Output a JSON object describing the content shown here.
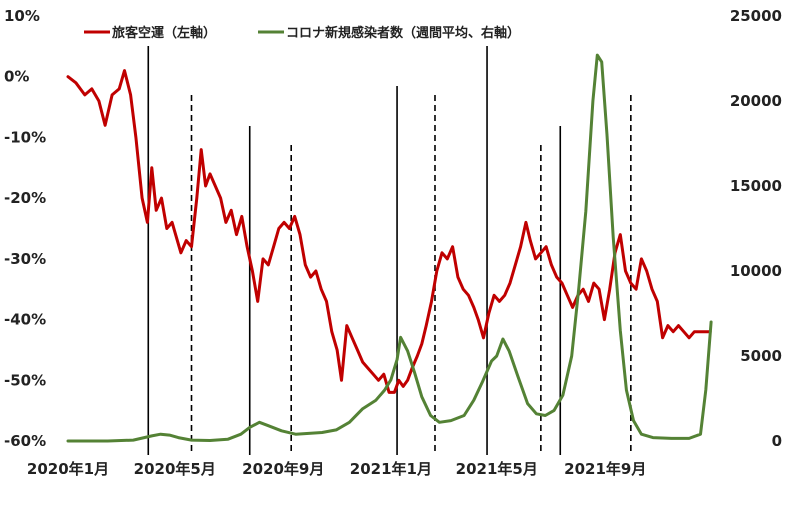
{
  "chart_data": {
    "type": "line",
    "legend": {
      "placement": "top-left"
    },
    "grid": false,
    "x_axis": {
      "range": [
        "2020-01-01",
        "2021-12-31"
      ],
      "ticks": [
        {
          "date": "2020-01-01",
          "label": "2020年1月"
        },
        {
          "date": "2020-05-01",
          "label": "2020年5月"
        },
        {
          "date": "2020-09-01",
          "label": "2020年9月"
        },
        {
          "date": "2021-01-01",
          "label": "2021年1月"
        },
        {
          "date": "2021-05-01",
          "label": "2021年5月"
        },
        {
          "date": "2021-09-01",
          "label": "2021年9月"
        }
      ]
    },
    "y_left": {
      "range": [
        -60,
        10
      ],
      "ticks": [
        {
          "value": 10,
          "label": "10%"
        },
        {
          "value": 0,
          "label": "0%"
        },
        {
          "value": -10,
          "label": "-10%"
        },
        {
          "value": -20,
          "label": "-20%"
        },
        {
          "value": -30,
          "label": "-30%"
        },
        {
          "value": -40,
          "label": "-40%"
        },
        {
          "value": -50,
          "label": "-50%"
        },
        {
          "value": -60,
          "label": "-60%"
        }
      ]
    },
    "y_right": {
      "range": [
        0,
        25000
      ],
      "ticks": [
        {
          "value": 0,
          "label": "0"
        },
        {
          "value": 5000,
          "label": "5000"
        },
        {
          "value": 10000,
          "label": "10000"
        },
        {
          "value": 15000,
          "label": "15000"
        },
        {
          "value": 20000,
          "label": "20000"
        },
        {
          "value": 25000,
          "label": "25000"
        }
      ]
    },
    "series": [
      {
        "name": "旅客空運（左軸）",
        "axis": "left",
        "color": "#C00000",
        "points": [
          [
            "2020-01-01",
            0
          ],
          [
            "2020-01-10",
            -1
          ],
          [
            "2020-01-20",
            -3
          ],
          [
            "2020-01-28",
            -2
          ],
          [
            "2020-02-05",
            -4
          ],
          [
            "2020-02-12",
            -8
          ],
          [
            "2020-02-20",
            -3
          ],
          [
            "2020-02-28",
            -2
          ],
          [
            "2020-03-05",
            1
          ],
          [
            "2020-03-12",
            -3
          ],
          [
            "2020-03-18",
            -10
          ],
          [
            "2020-03-25",
            -20
          ],
          [
            "2020-03-31",
            -24
          ],
          [
            "2020-04-05",
            -15
          ],
          [
            "2020-04-10",
            -22
          ],
          [
            "2020-04-16",
            -20
          ],
          [
            "2020-04-22",
            -25
          ],
          [
            "2020-04-28",
            -24
          ],
          [
            "2020-05-02",
            -26
          ],
          [
            "2020-05-08",
            -29
          ],
          [
            "2020-05-14",
            -27
          ],
          [
            "2020-05-20",
            -28
          ],
          [
            "2020-05-26",
            -20
          ],
          [
            "2020-05-31",
            -12
          ],
          [
            "2020-06-05",
            -18
          ],
          [
            "2020-06-10",
            -16
          ],
          [
            "2020-06-16",
            -18
          ],
          [
            "2020-06-22",
            -20
          ],
          [
            "2020-06-28",
            -24
          ],
          [
            "2020-07-04",
            -22
          ],
          [
            "2020-07-10",
            -26
          ],
          [
            "2020-07-16",
            -23
          ],
          [
            "2020-07-22",
            -28
          ],
          [
            "2020-07-28",
            -32
          ],
          [
            "2020-08-03",
            -37
          ],
          [
            "2020-08-09",
            -30
          ],
          [
            "2020-08-15",
            -31
          ],
          [
            "2020-08-21",
            -28
          ],
          [
            "2020-08-27",
            -25
          ],
          [
            "2020-09-02",
            -24
          ],
          [
            "2020-09-08",
            -25
          ],
          [
            "2020-09-14",
            -23
          ],
          [
            "2020-09-20",
            -26
          ],
          [
            "2020-09-26",
            -31
          ],
          [
            "2020-10-02",
            -33
          ],
          [
            "2020-10-08",
            -32
          ],
          [
            "2020-10-14",
            -35
          ],
          [
            "2020-10-20",
            -37
          ],
          [
            "2020-10-26",
            -42
          ],
          [
            "2020-11-01",
            -45
          ],
          [
            "2020-11-06",
            -50
          ],
          [
            "2020-11-12",
            -41
          ],
          [
            "2020-11-18",
            -43
          ],
          [
            "2020-11-24",
            -45
          ],
          [
            "2020-11-30",
            -47
          ],
          [
            "2020-12-06",
            -48
          ],
          [
            "2020-12-12",
            -49
          ],
          [
            "2020-12-18",
            -50
          ],
          [
            "2020-12-24",
            -49
          ],
          [
            "2020-12-30",
            -52
          ],
          [
            "2021-01-05",
            -52
          ],
          [
            "2021-01-10",
            -50
          ],
          [
            "2021-01-15",
            -51
          ],
          [
            "2021-01-20",
            -50
          ],
          [
            "2021-01-25",
            -48
          ],
          [
            "2021-01-31",
            -46
          ],
          [
            "2021-02-05",
            -44
          ],
          [
            "2021-02-10",
            -41
          ],
          [
            "2021-02-16",
            -37
          ],
          [
            "2021-02-22",
            -32
          ],
          [
            "2021-02-28",
            -29
          ],
          [
            "2021-03-06",
            -30
          ],
          [
            "2021-03-12",
            -28
          ],
          [
            "2021-03-18",
            -33
          ],
          [
            "2021-03-24",
            -35
          ],
          [
            "2021-03-30",
            -36
          ],
          [
            "2021-04-05",
            -38
          ],
          [
            "2021-04-10",
            -40
          ],
          [
            "2021-04-16",
            -43
          ],
          [
            "2021-04-22",
            -39
          ],
          [
            "2021-04-28",
            -36
          ],
          [
            "2021-05-04",
            -37
          ],
          [
            "2021-05-10",
            -36
          ],
          [
            "2021-05-16",
            -34
          ],
          [
            "2021-05-22",
            -31
          ],
          [
            "2021-05-28",
            -28
          ],
          [
            "2021-06-03",
            -24
          ],
          [
            "2021-06-08",
            -27
          ],
          [
            "2021-06-14",
            -30
          ],
          [
            "2021-06-20",
            -29
          ],
          [
            "2021-06-26",
            -28
          ],
          [
            "2021-07-02",
            -31
          ],
          [
            "2021-07-08",
            -33
          ],
          [
            "2021-07-14",
            -34
          ],
          [
            "2021-07-20",
            -36
          ],
          [
            "2021-07-26",
            -38
          ],
          [
            "2021-08-01",
            -36
          ],
          [
            "2021-08-07",
            -35
          ],
          [
            "2021-08-13",
            -37
          ],
          [
            "2021-08-19",
            -34
          ],
          [
            "2021-08-25",
            -35
          ],
          [
            "2021-08-31",
            -40
          ],
          [
            "2021-09-06",
            -35
          ],
          [
            "2021-09-12",
            -29
          ],
          [
            "2021-09-18",
            -26
          ],
          [
            "2021-09-24",
            -32
          ],
          [
            "2021-09-30",
            -34
          ],
          [
            "2021-10-06",
            -35
          ],
          [
            "2021-10-12",
            -30
          ],
          [
            "2021-10-18",
            -32
          ],
          [
            "2021-10-24",
            -35
          ],
          [
            "2021-10-30",
            -37
          ],
          [
            "2021-11-05",
            -43
          ],
          [
            "2021-11-11",
            -41
          ],
          [
            "2021-11-17",
            -42
          ],
          [
            "2021-11-23",
            -41
          ],
          [
            "2021-11-29",
            -42
          ],
          [
            "2021-12-05",
            -43
          ],
          [
            "2021-12-11",
            -42
          ],
          [
            "2021-12-17",
            -42
          ],
          [
            "2021-12-23",
            -42
          ],
          [
            "2021-12-29",
            -42
          ]
        ]
      },
      {
        "name": "コロナ新規感染者数（週間平均、右軸）",
        "axis": "right",
        "color": "#548235",
        "points": [
          [
            "2020-01-01",
            0
          ],
          [
            "2020-02-15",
            0
          ],
          [
            "2020-03-15",
            50
          ],
          [
            "2020-04-05",
            300
          ],
          [
            "2020-04-15",
            400
          ],
          [
            "2020-04-25",
            350
          ],
          [
            "2020-05-05",
            200
          ],
          [
            "2020-05-20",
            50
          ],
          [
            "2020-06-10",
            30
          ],
          [
            "2020-06-30",
            100
          ],
          [
            "2020-07-15",
            400
          ],
          [
            "2020-07-25",
            800
          ],
          [
            "2020-08-05",
            1100
          ],
          [
            "2020-08-15",
            900
          ],
          [
            "2020-08-30",
            600
          ],
          [
            "2020-09-15",
            400
          ],
          [
            "2020-09-30",
            450
          ],
          [
            "2020-10-15",
            500
          ],
          [
            "2020-10-31",
            650
          ],
          [
            "2020-11-15",
            1100
          ],
          [
            "2020-11-30",
            1900
          ],
          [
            "2020-12-15",
            2400
          ],
          [
            "2020-12-25",
            3000
          ],
          [
            "2021-01-01",
            3600
          ],
          [
            "2021-01-08",
            4800
          ],
          [
            "2021-01-12",
            6100
          ],
          [
            "2021-01-20",
            5300
          ],
          [
            "2021-01-28",
            4000
          ],
          [
            "2021-02-05",
            2600
          ],
          [
            "2021-02-15",
            1500
          ],
          [
            "2021-02-25",
            1100
          ],
          [
            "2021-03-10",
            1200
          ],
          [
            "2021-03-25",
            1500
          ],
          [
            "2021-04-05",
            2400
          ],
          [
            "2021-04-15",
            3500
          ],
          [
            "2021-04-25",
            4700
          ],
          [
            "2021-05-01",
            5000
          ],
          [
            "2021-05-08",
            6000
          ],
          [
            "2021-05-15",
            5300
          ],
          [
            "2021-05-25",
            3800
          ],
          [
            "2021-06-05",
            2200
          ],
          [
            "2021-06-15",
            1600
          ],
          [
            "2021-06-25",
            1500
          ],
          [
            "2021-07-05",
            1800
          ],
          [
            "2021-07-15",
            2700
          ],
          [
            "2021-07-25",
            5000
          ],
          [
            "2021-08-02",
            9000
          ],
          [
            "2021-08-10",
            13500
          ],
          [
            "2021-08-18",
            20000
          ],
          [
            "2021-08-23",
            22700
          ],
          [
            "2021-08-28",
            22300
          ],
          [
            "2021-09-03",
            18000
          ],
          [
            "2021-09-10",
            12000
          ],
          [
            "2021-09-18",
            6500
          ],
          [
            "2021-09-25",
            3000
          ],
          [
            "2021-10-03",
            1200
          ],
          [
            "2021-10-12",
            400
          ],
          [
            "2021-10-25",
            200
          ],
          [
            "2021-11-15",
            150
          ],
          [
            "2021-12-05",
            150
          ],
          [
            "2021-12-18",
            400
          ],
          [
            "2021-12-24",
            3000
          ],
          [
            "2021-12-30",
            7000
          ]
        ]
      }
    ],
    "reference_lines": [
      {
        "date": "2020-04-01",
        "style": "solid"
      },
      {
        "date": "2020-05-20",
        "style": "dashed"
      },
      {
        "date": "2020-07-25",
        "style": "solid"
      },
      {
        "date": "2020-09-10",
        "style": "dashed"
      },
      {
        "date": "2021-01-08",
        "style": "solid"
      },
      {
        "date": "2021-02-20",
        "style": "dashed"
      },
      {
        "date": "2021-04-20",
        "style": "solid"
      },
      {
        "date": "2021-06-20",
        "style": "dashed"
      },
      {
        "date": "2021-07-12",
        "style": "solid"
      },
      {
        "date": "2021-09-30",
        "style": "dashed"
      }
    ]
  }
}
